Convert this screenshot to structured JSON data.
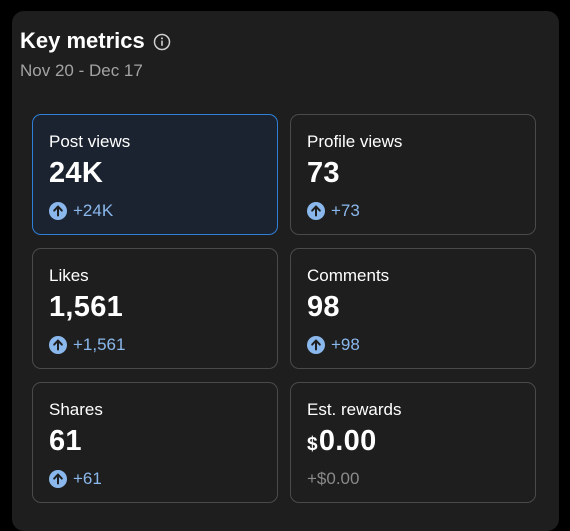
{
  "header": {
    "title": "Key metrics",
    "info_icon": "info-circle-icon",
    "date_range": "Nov 20 - Dec 17"
  },
  "colors": {
    "accent": "#8ab8ec",
    "selected_border": "#2f7fd6",
    "card_border": "#4a4a4a",
    "panel_bg": "#1e1e1e"
  },
  "metrics": [
    {
      "label": "Post views",
      "value": "24K",
      "delta": "+24K",
      "icon": "arrow-up-circle-icon",
      "selected": true
    },
    {
      "label": "Profile views",
      "value": "73",
      "delta": "+73",
      "icon": "arrow-up-circle-icon",
      "selected": false
    },
    {
      "label": "Likes",
      "value": "1,561",
      "delta": "+1,561",
      "icon": "arrow-up-circle-icon",
      "selected": false
    },
    {
      "label": "Comments",
      "value": "98",
      "delta": "+98",
      "icon": "arrow-up-circle-icon",
      "selected": false
    },
    {
      "label": "Shares",
      "value": "61",
      "delta": "+61",
      "icon": "arrow-up-circle-icon",
      "selected": false
    },
    {
      "label": "Est. rewards",
      "currency": "$",
      "value": "0.00",
      "delta": "+$0.00",
      "selected": false
    }
  ]
}
